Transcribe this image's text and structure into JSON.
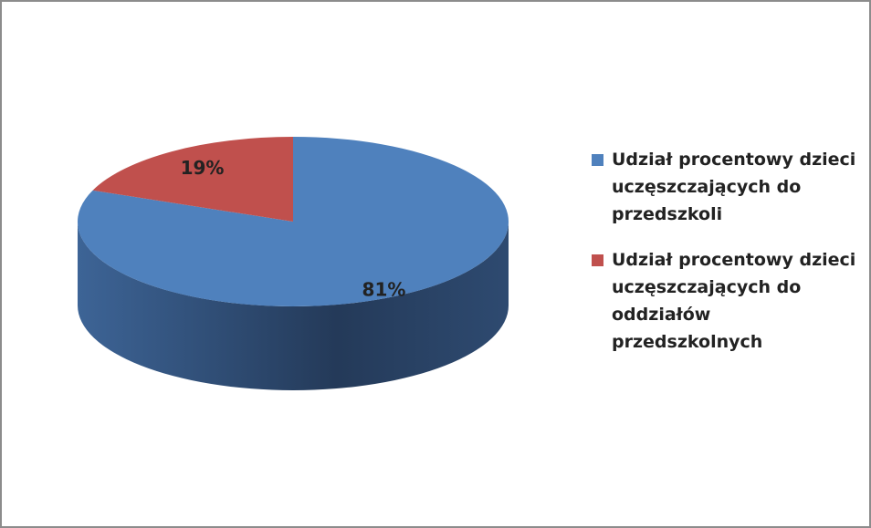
{
  "chart_data": {
    "type": "pie",
    "categories": [
      "Udział procentowy dzieci uczęszczających do przedszkoli",
      "Udział procentowy dzieci uczęszczających do oddziałów przedszkolnych"
    ],
    "values": [
      81,
      19
    ],
    "value_labels": [
      "81%",
      "19%"
    ],
    "colors": [
      "#4f81bd",
      "#c0504d"
    ],
    "legend": "right"
  }
}
